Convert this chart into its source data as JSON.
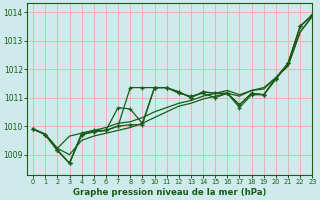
{
  "title": "Graphe pression niveau de la mer (hPa)",
  "bg_color": "#ceeaea",
  "grid_color": "#e8b4b4",
  "line_color": "#1a5c1a",
  "xlim": [
    -0.5,
    23
  ],
  "ylim": [
    1008.3,
    1014.3
  ],
  "yticks": [
    1009,
    1010,
    1011,
    1012,
    1013,
    1014
  ],
  "xticks": [
    0,
    1,
    2,
    3,
    4,
    5,
    6,
    7,
    8,
    9,
    10,
    11,
    12,
    13,
    14,
    15,
    16,
    17,
    18,
    19,
    20,
    21,
    22,
    23
  ],
  "series_with_markers": [
    [
      1009.9,
      1009.7,
      1009.15,
      1008.7,
      1009.7,
      1009.8,
      1009.85,
      1010.65,
      1010.6,
      1010.1,
      1011.35,
      1011.35,
      1011.15,
      1011.05,
      1011.15,
      1011.0,
      1011.15,
      1010.65,
      1011.1,
      1011.1,
      1011.7,
      1012.2,
      1013.5,
      1013.9
    ],
    [
      1009.9,
      1009.7,
      1009.15,
      1008.7,
      1009.7,
      1009.8,
      1009.85,
      1010.0,
      1011.35,
      1011.35,
      1011.35,
      1011.35,
      1011.2,
      1011.0,
      1011.2,
      1011.15,
      1011.15,
      1010.75,
      1011.15,
      1011.1,
      1011.65,
      1012.2,
      1013.5,
      1013.9
    ],
    [
      1009.9,
      1009.7,
      1009.15,
      1008.7,
      1009.75,
      1009.85,
      1009.85,
      1010.0,
      1010.05,
      1010.05,
      1011.35,
      1011.35,
      1011.2,
      1011.0,
      1011.2,
      1011.15,
      1011.15,
      1010.75,
      1011.15,
      1011.1,
      1011.65,
      1012.2,
      1013.5,
      1013.9
    ]
  ],
  "series_smooth": [
    [
      1009.9,
      1009.72,
      1009.22,
      1009.65,
      1009.75,
      1009.85,
      1009.95,
      1010.1,
      1010.15,
      1010.3,
      1010.5,
      1010.65,
      1010.8,
      1010.9,
      1011.05,
      1011.15,
      1011.25,
      1011.1,
      1011.25,
      1011.35,
      1011.7,
      1012.15,
      1013.3,
      1013.85
    ],
    [
      1009.9,
      1009.72,
      1009.22,
      1009.0,
      1009.5,
      1009.65,
      1009.75,
      1009.85,
      1009.95,
      1010.1,
      1010.3,
      1010.5,
      1010.7,
      1010.8,
      1010.95,
      1011.05,
      1011.15,
      1011.05,
      1011.25,
      1011.3,
      1011.7,
      1012.1,
      1013.3,
      1013.85
    ]
  ]
}
